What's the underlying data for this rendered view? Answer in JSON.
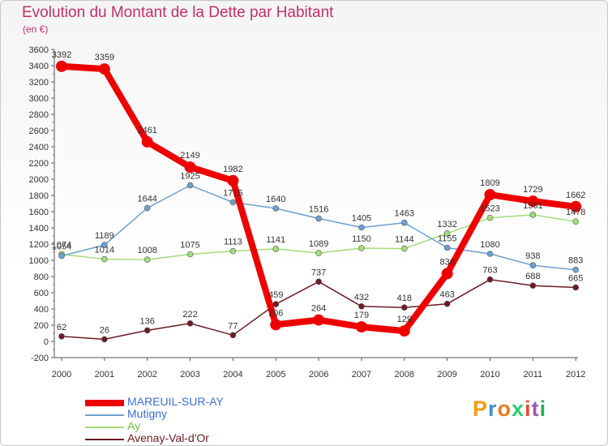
{
  "title": "Evolution du Montant de la Dette par Habitant",
  "unit_label": "(en €)",
  "logo": {
    "letters": [
      "P",
      "r",
      "o",
      "x",
      "i",
      "t",
      "i"
    ],
    "colors": [
      "#f39c12",
      "#3b8fd0",
      "#e67e22",
      "#2ecc71",
      "#e74c3c",
      "#9b59b6",
      "#27ae60"
    ]
  },
  "chart_data": {
    "type": "line",
    "x": [
      "2000",
      "2001",
      "2002",
      "2003",
      "2004",
      "2005",
      "2006",
      "2007",
      "2008",
      "2009",
      "2010",
      "2011",
      "2012"
    ],
    "ylim": [
      -200,
      3600
    ],
    "yticks": [
      -200,
      0,
      200,
      400,
      600,
      800,
      1000,
      1200,
      1400,
      1600,
      1800,
      2000,
      2200,
      2400,
      2600,
      2800,
      3000,
      3200,
      3400,
      3600
    ],
    "grid": false,
    "legend_position": "bottom-left",
    "series": [
      {
        "name": "MAREUIL-SUR-AY",
        "color": "#ee0000",
        "line_width": 8,
        "marker_radius": 7,
        "label_color": "#333333",
        "values": [
          3392,
          3359,
          2461,
          2149,
          1982,
          206,
          264,
          179,
          129,
          836,
          1809,
          1729,
          1662
        ]
      },
      {
        "name": "Mutigny",
        "color": "#6ea0cf",
        "line_width": 1.5,
        "marker_radius": 3.5,
        "label_color": "#333333",
        "values": [
          1054,
          1189,
          1644,
          1925,
          1715,
          1640,
          1516,
          1405,
          1463,
          1155,
          1080,
          938,
          883
        ]
      },
      {
        "name": "Ay",
        "color": "#a3dc7a",
        "line_width": 1.5,
        "marker_radius": 3.5,
        "label_color": "#333333",
        "values": [
          1074,
          1014,
          1008,
          1075,
          1113,
          1141,
          1089,
          1150,
          1144,
          1332,
          1523,
          1561,
          1478
        ]
      },
      {
        "name": "Avenay-Val-d'Or",
        "color": "#6b1c24",
        "line_width": 1.5,
        "marker_radius": 3.5,
        "label_color": "#333333",
        "values": [
          62,
          26,
          136,
          222,
          77,
          459,
          737,
          432,
          418,
          463,
          763,
          688,
          665
        ]
      }
    ]
  }
}
